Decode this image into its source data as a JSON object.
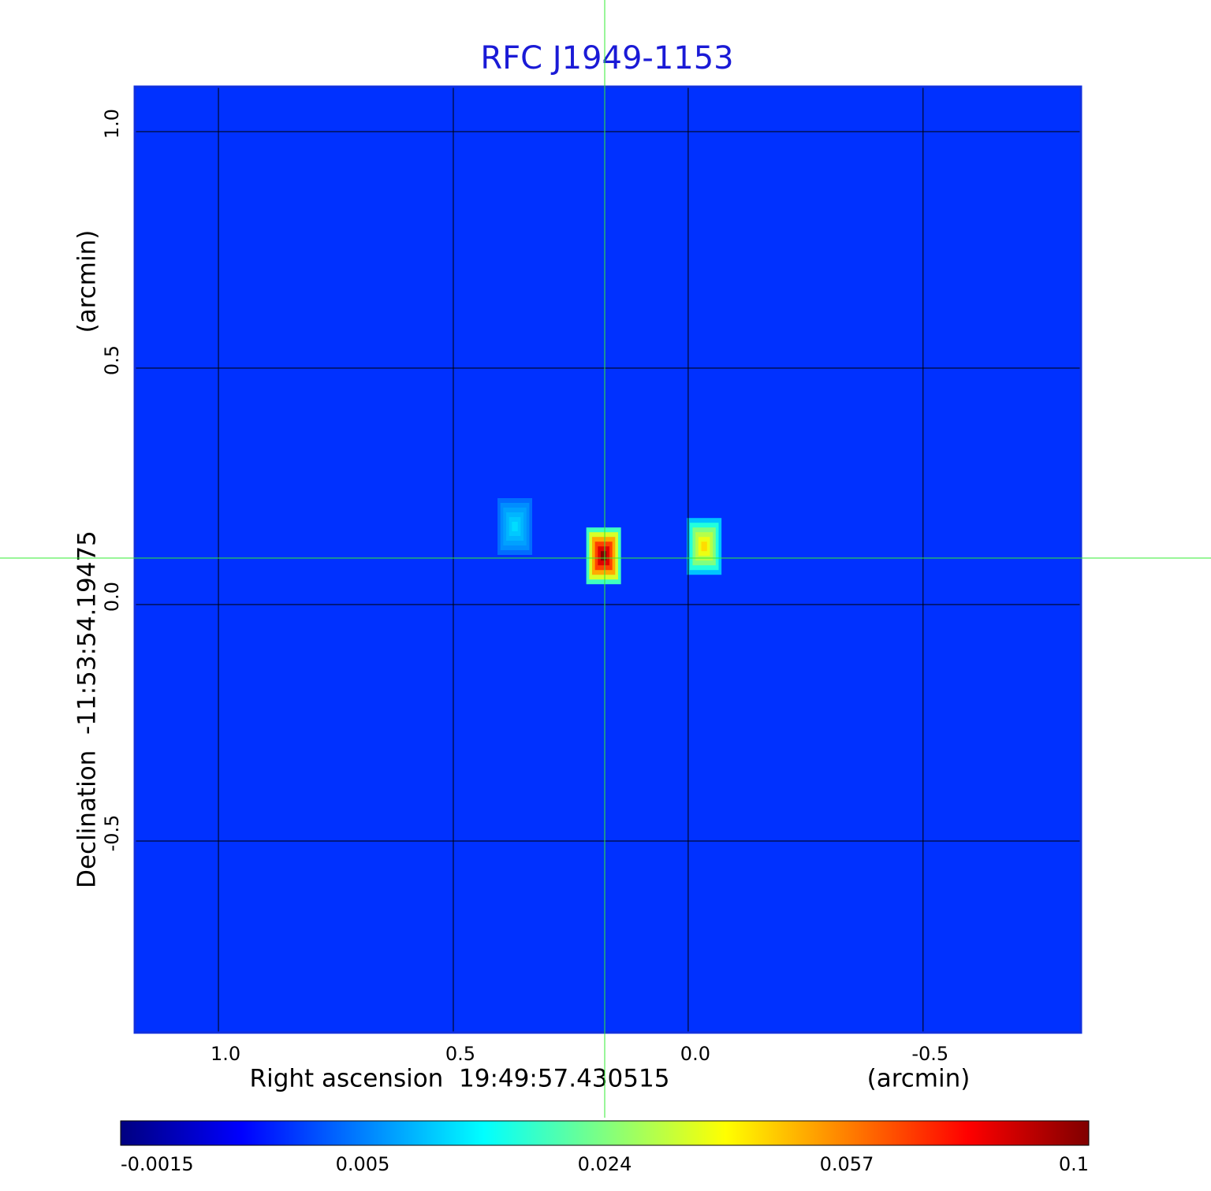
{
  "chart_data": {
    "type": "heatmap",
    "title": "RFC J1949-1153",
    "xlabel": "Right ascension  19:49:57.430515",
    "xunit": "(arcmin)",
    "ylabel": "Declination  -11:53:54.19475",
    "yunit": "(arcmin)",
    "xlim": [
      1.178,
      -0.836
    ],
    "ylim": [
      -0.905,
      1.095
    ],
    "xticks": [
      {
        "value": 1,
        "label": "1.0"
      },
      0.5,
      {
        "value": 0,
        "label": "0.0"
      },
      -0.5
    ],
    "yticks": [
      {
        "value": 1,
        "label": "1.0"
      },
      0.5,
      {
        "value": 0,
        "label": "0.0"
      },
      -0.5
    ],
    "grid": true,
    "colormap": "jet",
    "background": 0.003,
    "sources": {
      "x": [
        0.369,
        0.18,
        -0.034
      ],
      "y": [
        0.165,
        0.103,
        0.123
      ],
      "values": [
        0.012,
        0.1,
        0.045
      ]
    },
    "colorbar": {
      "ticks": [
        -0.0015,
        0.005,
        0.024,
        0.057,
        0.1
      ]
    }
  }
}
